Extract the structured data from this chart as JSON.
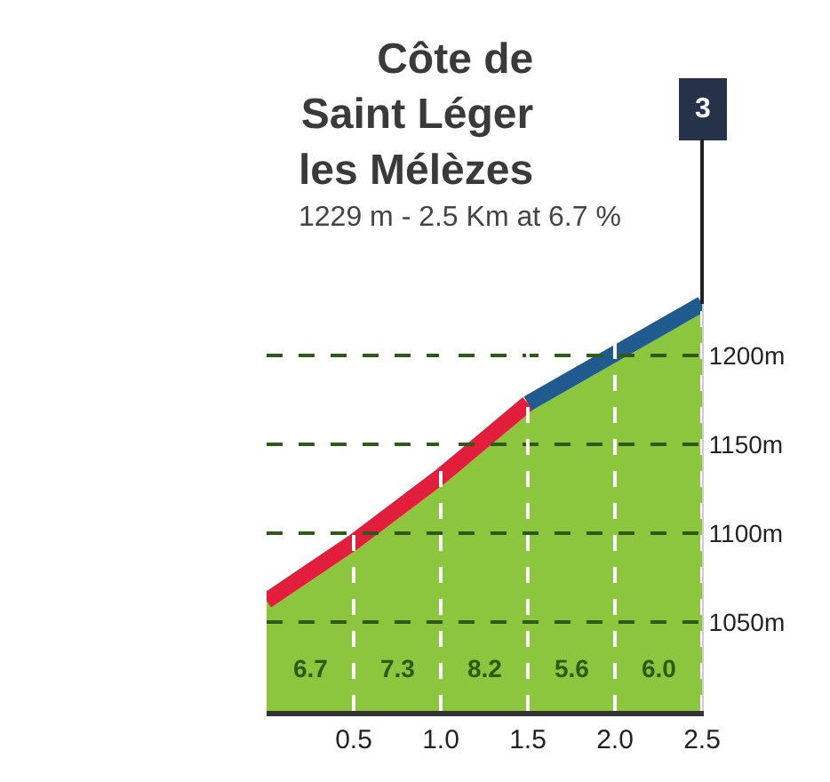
{
  "chart_data": {
    "type": "area",
    "title": "Côte de\nSaint Léger\nles Mélèzes",
    "subtitle": "1229 m - 2.5 Km at 6.7 %",
    "x": [
      0,
      0.5,
      1,
      1.5,
      2,
      2.5
    ],
    "series": [
      {
        "color": "#8cc63f",
        "values": [
          1062,
          1095,
          1132,
          1173,
          1201,
          1229
        ]
      },
      {
        "type": "line",
        "color": "#e31e3c",
        "x": [
          0,
          0.5,
          1,
          1.5
        ],
        "values": [
          1062,
          1095,
          1132,
          1173
        ]
      },
      {
        "type": "line",
        "color": "#1f5b8f",
        "x": [
          1.5,
          2,
          2.5
        ],
        "values": [
          1173,
          1201,
          1229
        ]
      }
    ],
    "xlim": [
      0,
      2.5
    ],
    "xticks": [
      0.5,
      {
        "value": 1,
        "label": "1.0"
      },
      1.5,
      {
        "value": 2,
        "label": "2.0"
      },
      2.5
    ],
    "ylim": [
      1000,
      1240
    ],
    "yticks": [
      {
        "value": 1050,
        "label": "1050m"
      },
      {
        "value": 1100,
        "label": "1100m"
      },
      {
        "value": 1150,
        "label": "1150m"
      },
      {
        "value": 1200,
        "label": "1200m"
      }
    ],
    "grid": true,
    "annotations": [
      "6.7",
      "7.3",
      "8.2",
      "5.6",
      "6.0",
      {
        "text": "3",
        "x": 2.5,
        "y": 1229
      }
    ]
  }
}
